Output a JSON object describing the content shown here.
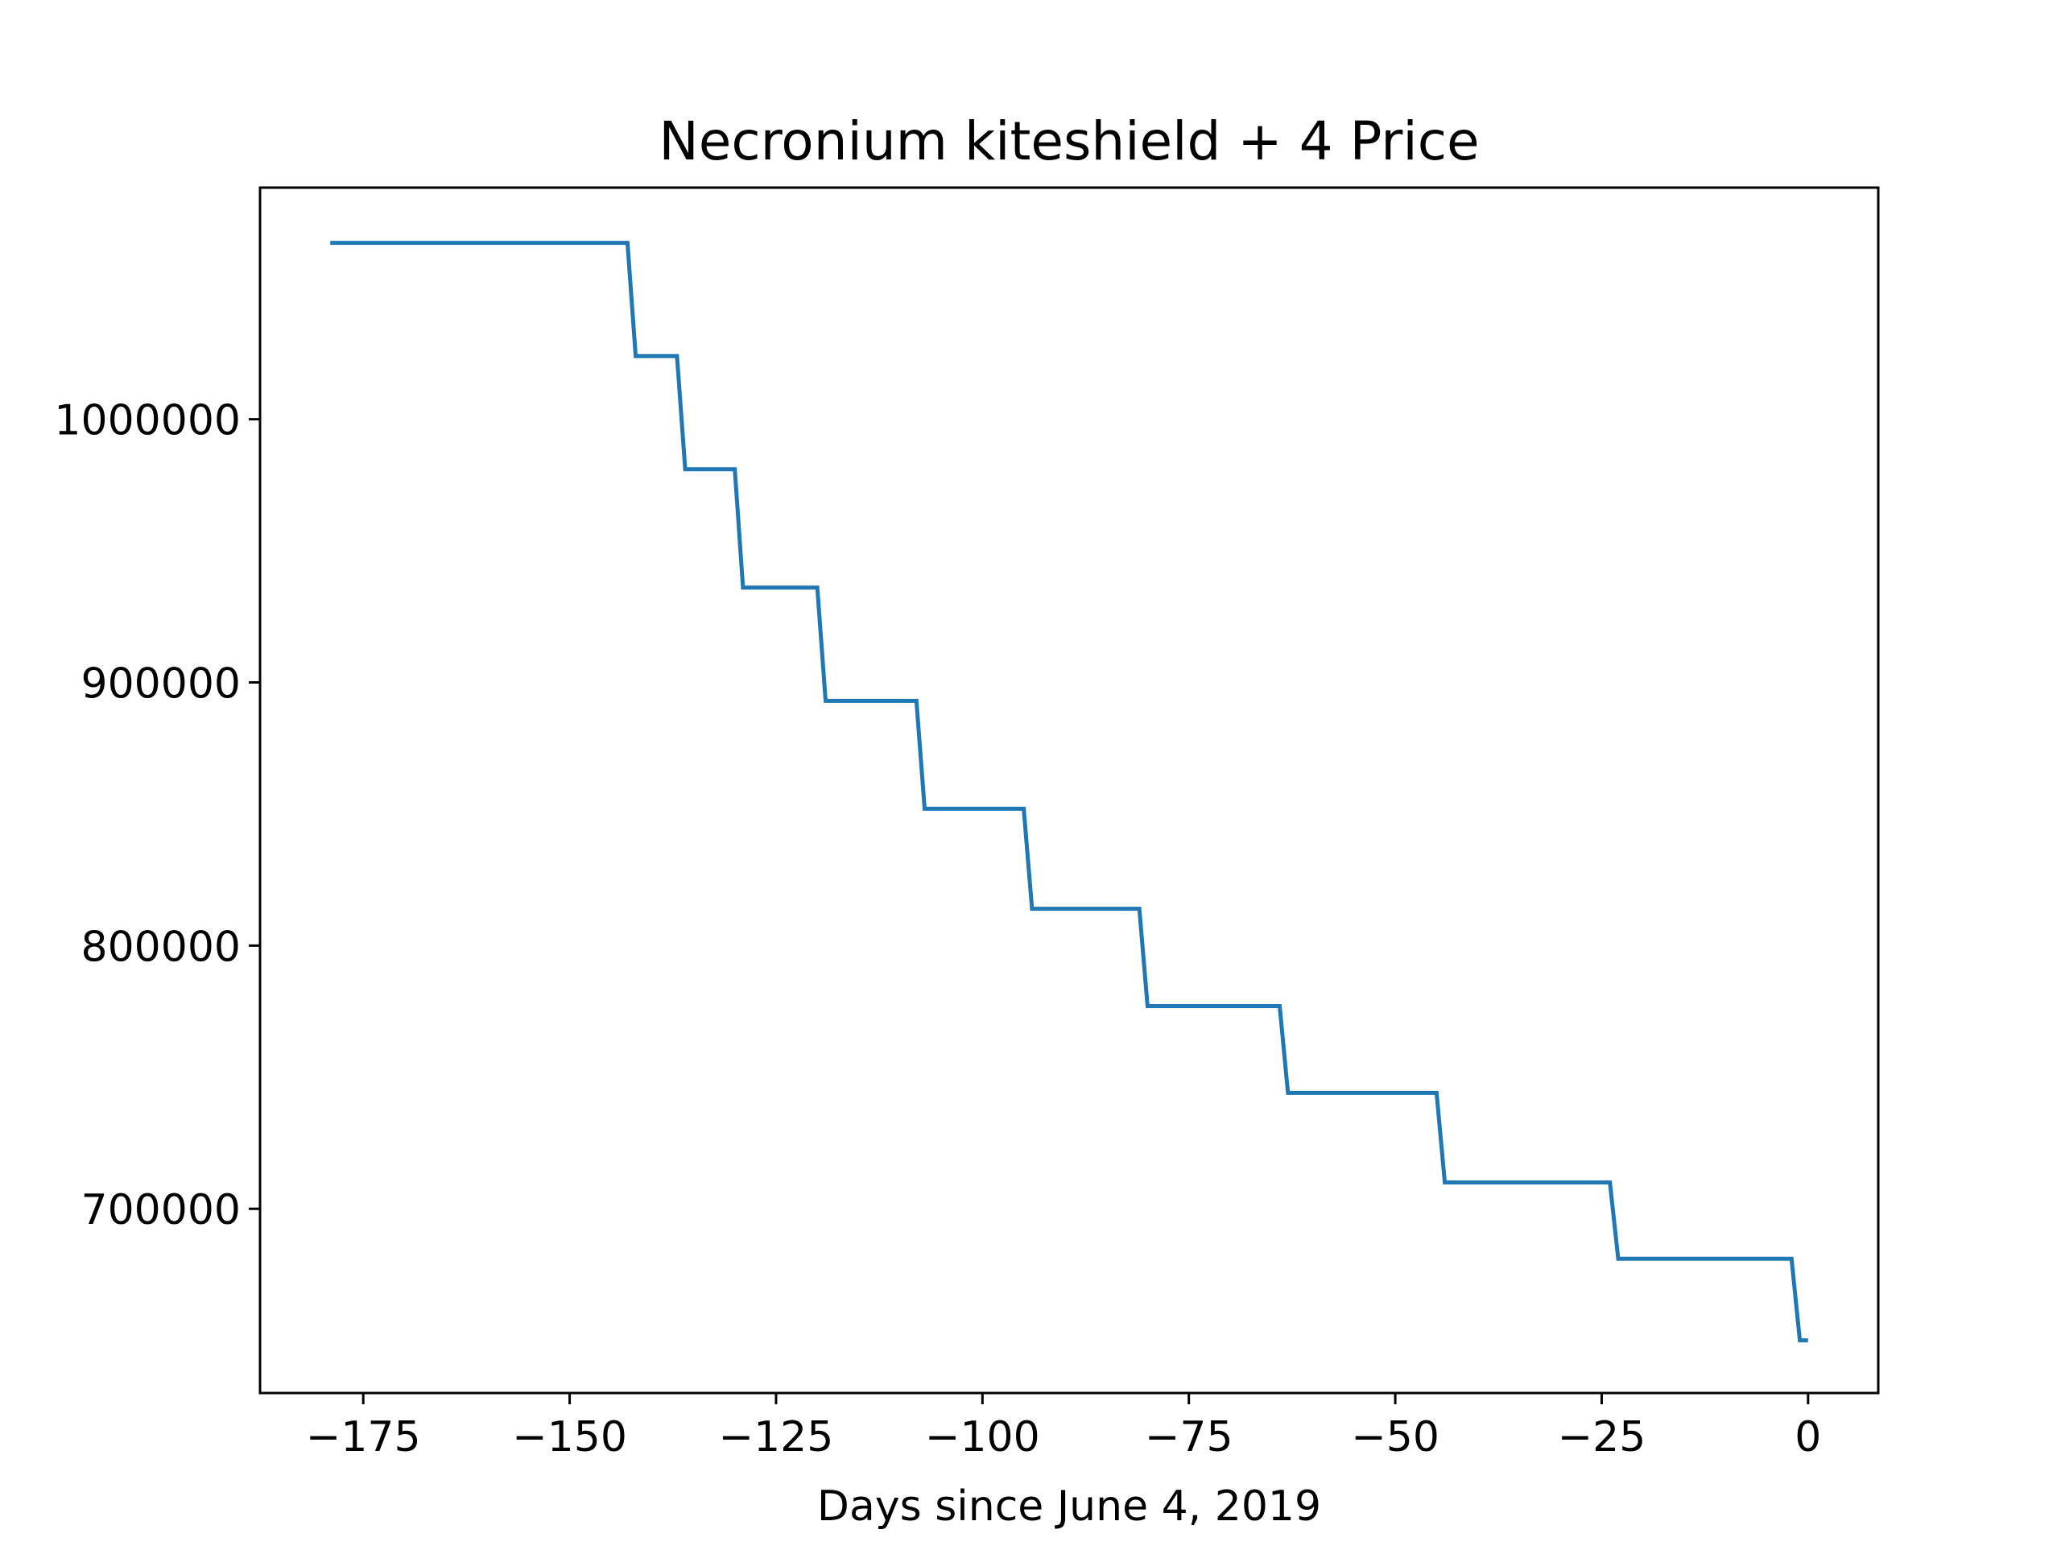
{
  "chart_data": {
    "type": "line",
    "title": "Necronium kiteshield + 4 Price",
    "xlabel": "Days since June 4, 2019",
    "ylabel": "",
    "xlim": [
      -187.5,
      8.5
    ],
    "ylim": [
      630000,
      1088000
    ],
    "xticks": [
      -175,
      -150,
      -125,
      -100,
      -75,
      -50,
      -25,
      0
    ],
    "xtick_labels": [
      "−175",
      "−150",
      "−125",
      "−100",
      "−75",
      "−50",
      "−25",
      "0"
    ],
    "yticks": [
      700000,
      800000,
      900000,
      1000000
    ],
    "ytick_labels": [
      "700000",
      "800000",
      "900000",
      "1000000"
    ],
    "grid": false,
    "series": [
      {
        "color": "#1f77b4",
        "x": [
          -179,
          -143,
          -142,
          -137,
          -136,
          -130,
          -129,
          -120,
          -119,
          -108,
          -107,
          -95,
          -94,
          -81,
          -80,
          -64,
          -63,
          -45,
          -44,
          -24,
          -23,
          -2,
          -1,
          0
        ],
        "y": [
          1067000,
          1067000,
          1024000,
          1024000,
          981000,
          981000,
          936000,
          936000,
          893000,
          893000,
          852000,
          852000,
          814000,
          814000,
          777000,
          777000,
          744000,
          744000,
          710000,
          710000,
          681000,
          681000,
          650000,
          650000
        ]
      }
    ]
  }
}
